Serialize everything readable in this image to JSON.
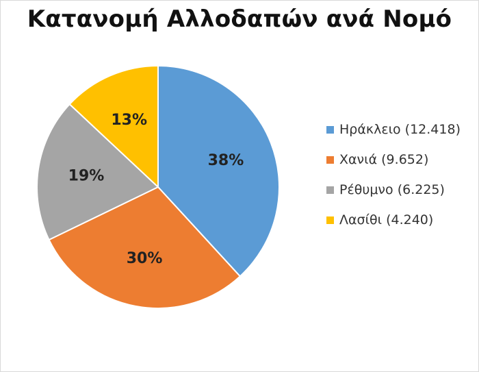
{
  "chart_data": {
    "type": "pie",
    "title": "Κατανομή Αλλοδαπών ανά Νομό",
    "categories": [
      "Ηράκλειο",
      "Χανιά",
      "Ρέθυμνο",
      "Λασίθι"
    ],
    "values": [
      12418,
      9652,
      6225,
      4240
    ],
    "percent_labels": [
      "38%",
      "30%",
      "19%",
      "13%"
    ],
    "legend_labels": [
      "Ηράκλειο (12.418)",
      "Χανιά (9.652)",
      "Ρέθυμνο (6.225)",
      "Λασίθι (4.240)"
    ],
    "colors": [
      "#5B9BD5",
      "#ED7D31",
      "#A5A5A5",
      "#FFC000"
    ],
    "legend_position": "right",
    "start_angle": "12 o'clock",
    "direction": "clockwise"
  }
}
